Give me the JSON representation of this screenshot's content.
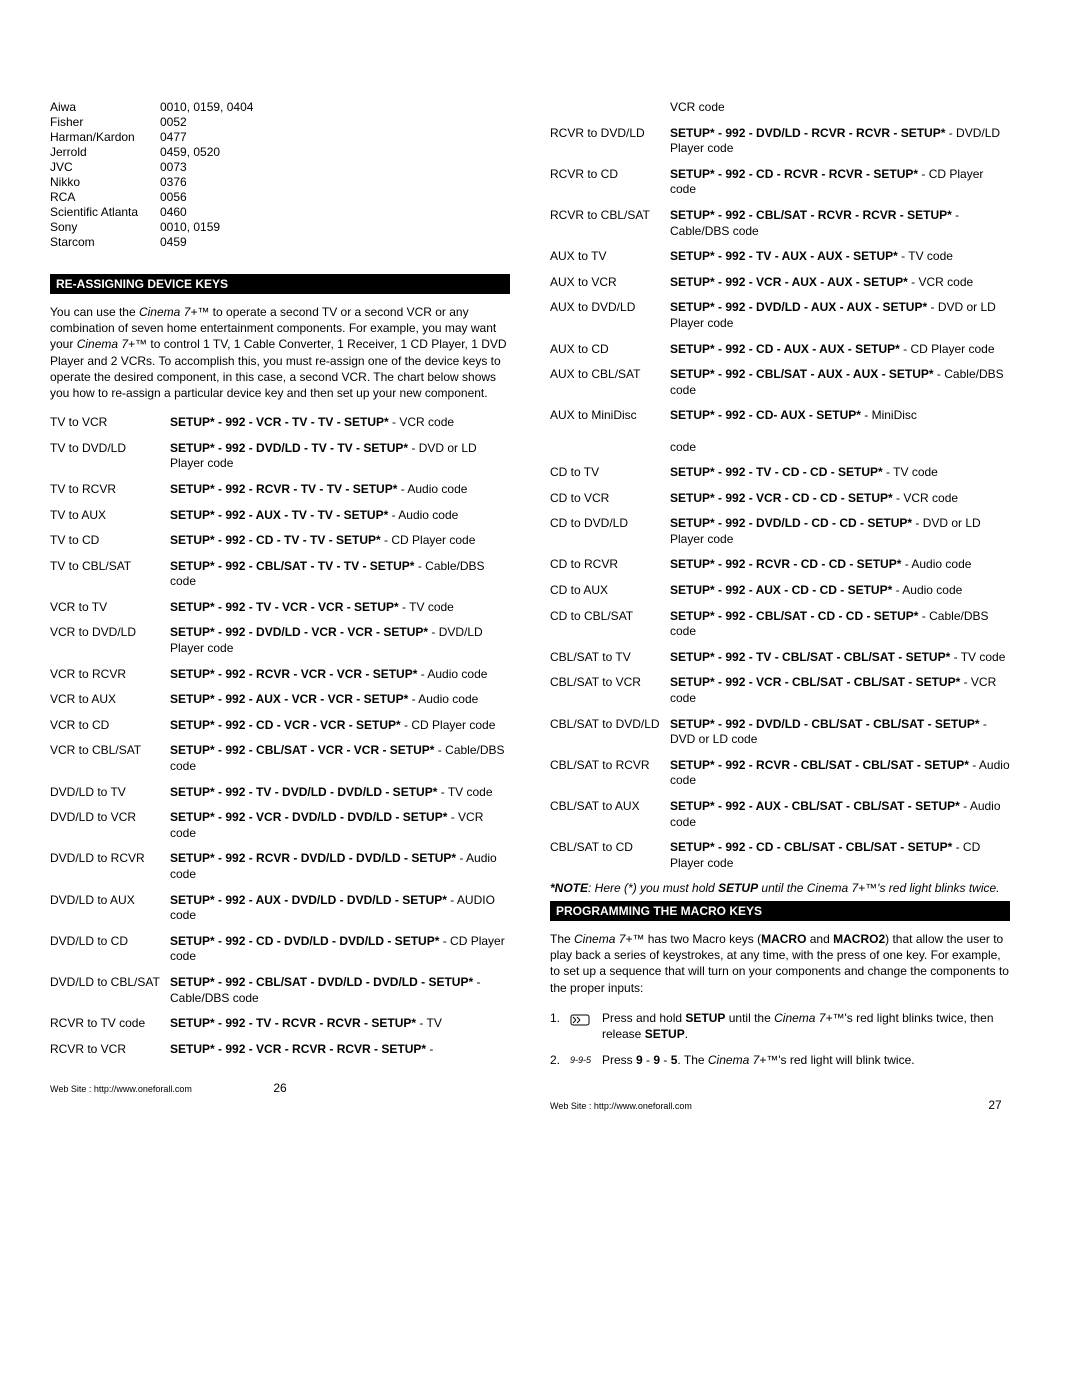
{
  "brands": [
    {
      "name": "Aiwa",
      "codes": "0010, 0159, 0404"
    },
    {
      "name": "Fisher",
      "codes": "0052"
    },
    {
      "name": "Harman/Kardon",
      "codes": "0477"
    },
    {
      "name": "Jerrold",
      "codes": "0459, 0520"
    },
    {
      "name": "JVC",
      "codes": "0073"
    },
    {
      "name": "Nikko",
      "codes": "0376"
    },
    {
      "name": "RCA",
      "codes": "0056"
    },
    {
      "name": "Scientific Atlanta",
      "codes": "0460"
    },
    {
      "name": "Sony",
      "codes": "0010, 0159"
    },
    {
      "name": "Starcom",
      "codes": "0459"
    }
  ],
  "section1_title": "RE-ASSIGNING DEVICE KEYS",
  "intro_html": "You can use the <span class=\"italic\">Cinema 7+™</span> to operate a second TV or a second VCR or any combination of seven home entertainment components. For example, you may want your <span class=\"italic\">Cinema 7+™</span> to control 1 TV, 1 Cable Converter, 1 Receiver, 1 CD Player, 1 DVD Player and 2 VCRs. To accomplish this, you must re-assign one of the device keys to operate the desired component, in this case, a second VCR. The chart below shows you how to re-assign a particular device key and then set up your new component.",
  "left_map": [
    {
      "label": "TV to VCR",
      "html": "<b>SETUP* - 992 - VCR - TV -  TV - SETUP*</b> - VCR code"
    },
    {
      "label": "TV to DVD/LD",
      "html": "<b>SETUP* - 992 - DVD/LD - TV - TV - SETUP*</b> - DVD or LD Player code"
    },
    {
      "label": "TV to RCVR",
      "html": "<b>SETUP* - 992 - RCVR - TV - TV - SETUP*</b> - Audio code"
    },
    {
      "label": "TV to AUX",
      "html": "<b>SETUP* - 992 - AUX - TV - TV - SETUP*</b> - Audio code"
    },
    {
      "label": "TV to CD",
      "html": "<b>SETUP* - 992 - CD - TV - TV - SETUP*</b> - CD Player code"
    },
    {
      "label": "TV to CBL/SAT",
      "html": "<b>SETUP* - 992 - CBL/SAT - TV - TV - SETUP*</b> - Cable/DBS code"
    },
    {
      "label": "VCR to TV",
      "html": "<b>SETUP* - 992 - TV - VCR - VCR - SETUP*</b> - TV code"
    },
    {
      "label": "VCR to DVD/LD",
      "html": "<b>SETUP* - 992 - DVD/LD - VCR - VCR - SETUP*</b> - DVD/LD Player code"
    },
    {
      "label": "VCR to RCVR",
      "html": "<b>SETUP* - 992 - RCVR - VCR - VCR - SETUP*</b> - Audio code"
    },
    {
      "label": "VCR to AUX",
      "html": "<b>SETUP* - 992 - AUX - VCR - VCR - SETUP*</b> - Audio code"
    },
    {
      "label": "VCR to CD",
      "html": "<b>SETUP* - 992 - CD - VCR - VCR - SETUP*</b> - CD Player code"
    },
    {
      "label": "VCR to CBL/SAT",
      "html": "<b>SETUP* - 992 - CBL/SAT - VCR - VCR - SETUP*</b> - Cable/DBS code"
    },
    {
      "label": "DVD/LD to TV",
      "html": "<b>SETUP* - 992 - TV - DVD/LD - DVD/LD - SETUP*</b> - TV code"
    },
    {
      "label": "DVD/LD to VCR",
      "html": "<b>SETUP* - 992 - VCR - DVD/LD - DVD/LD - SETUP*</b> - VCR code"
    },
    {
      "label": "DVD/LD to RCVR",
      "html": "<b>SETUP* - 992 - RCVR - DVD/LD - DVD/LD - SETUP*</b> - Audio code"
    },
    {
      "label": "DVD/LD to AUX",
      "html": "<b>SETUP* - 992 - AUX - DVD/LD - DVD/LD - SETUP*</b> - AUDIO code"
    },
    {
      "label": "DVD/LD to CD",
      "html": "<b>SETUP* - 992 - CD - DVD/LD - DVD/LD - SETUP*</b> - CD Player code"
    },
    {
      "label": "DVD/LD to CBL/SAT",
      "html": "<b>SETUP* - 992 - CBL/SAT - DVD/LD - DVD/LD - SETUP*</b> - Cable/DBS code"
    },
    {
      "label": "RCVR  to TV code",
      "html": "<b>SETUP* - 992 - TV - RCVR - RCVR - SETUP*</b> - TV"
    },
    {
      "label": "RCVR to VCR",
      "html": "<b>SETUP* - 992 - VCR - RCVR - RCVR - SETUP*</b> -"
    }
  ],
  "right_top_extra": "VCR code",
  "right_map": [
    {
      "label": "RCVR to DVD/LD",
      "html": "<b>SETUP* - 992 - DVD/LD - RCVR - RCVR - SETUP*</b> - DVD/LD Player code"
    },
    {
      "label": "RCVR to CD",
      "html": "<b>SETUP* - 992 - CD - RCVR - RCVR - SETUP*</b> - CD Player code"
    },
    {
      "label": "RCVR to CBL/SAT",
      "html": "<b>SETUP* - 992 - CBL/SAT - RCVR - RCVR - SETUP*</b> - Cable/DBS code"
    },
    {
      "label": "AUX to TV",
      "html": "<b>SETUP* - 992 - TV - AUX - AUX - SETUP*</b> - TV code"
    },
    {
      "label": "AUX to VCR",
      "html": "<b>SETUP* - 992 - VCR - AUX - AUX - SETUP*</b> - VCR code"
    },
    {
      "label": "AUX to DVD/LD",
      "html": "<b>SETUP* - 992 - DVD/LD - AUX - AUX - SETUP*</b> - DVD or LD Player code"
    },
    {
      "label": "AUX to CD",
      "html": "<b>SETUP* - 992 - CD - AUX - AUX - SETUP*</b> - CD Player code"
    },
    {
      "label": "AUX to CBL/SAT",
      "html": "<b>SETUP* - 992 - CBL/SAT - AUX - AUX - SETUP*</b> - Cable/DBS code"
    },
    {
      "label": "AUX to MiniDisc",
      "html": "<b>SETUP* - 992 - CD- AUX - SETUP*</b> - MiniDisc<br><br>code"
    },
    {
      "label": "CD to TV",
      "html": "<b>SETUP* - 992 - TV - CD - CD - SETUP*</b> - TV code"
    },
    {
      "label": "CD to VCR",
      "html": "<b>SETUP* - 992 - VCR - CD - CD - SETUP*</b> - VCR code"
    },
    {
      "label": "CD to DVD/LD",
      "html": "<b>SETUP* - 992 - DVD/LD - CD - CD - SETUP*</b> - DVD or LD Player code"
    },
    {
      "label": "CD to RCVR",
      "html": "<b>SETUP* - 992 - RCVR - CD - CD - SETUP*</b> - Audio code"
    },
    {
      "label": "CD to AUX",
      "html": "<b>SETUP* - 992 - AUX - CD - CD - SETUP*</b> - Audio code"
    },
    {
      "label": "CD to CBL/SAT",
      "html": "<b>SETUP* - 992 - CBL/SAT - CD - CD - SETUP*</b> - Cable/DBS code"
    },
    {
      "label": "CBL/SAT to TV",
      "html": "<b>SETUP* - 992 - TV - CBL/SAT - CBL/SAT - SETUP*</b> - TV code"
    },
    {
      "label": "CBL/SAT to VCR",
      "html": "<b>SETUP* - 992 - VCR - CBL/SAT - CBL/SAT - SETUP*</b> - VCR code"
    },
    {
      "label": "CBL/SAT to DVD/LD",
      "html": "<b>SETUP* - 992 - DVD/LD - CBL/SAT - CBL/SAT - SETUP*</b> - DVD or LD code"
    },
    {
      "label": "CBL/SAT to RCVR",
      "html": "<b>SETUP* - 992 - RCVR - CBL/SAT - CBL/SAT - SETUP*</b> - Audio code"
    },
    {
      "label": "CBL/SAT to AUX",
      "html": "<b>SETUP* - 992 - AUX - CBL/SAT - CBL/SAT - SETUP*</b> - Audio code"
    },
    {
      "label": "CBL/SAT to  CD",
      "html": "<b>SETUP* - 992 - CD - CBL/SAT - CBL/SAT - SETUP*</b> - CD Player code"
    }
  ],
  "note_html": "<b>*NOTE</b>: Here (*) you must hold <b>SETUP</b> until the Cinema 7+™'s red light blinks twice.",
  "section2_title": "PROGRAMMING THE MACRO KEYS",
  "macro_intro_html": "The <span class=\"italic\">Cinema 7+™</span> has two Macro keys (<b>MACRO</b> and <b>MACRO2</b>) that allow the user to play back a series of keystrokes, at any time, with the press of one key. For example, to set up a sequence that will turn on your components and change the components to the proper inputs:",
  "steps": [
    {
      "num": "1.",
      "icon": "hold",
      "html": "Press and hold <b>SETUP</b> until the <span class=\"italic\">Cinema 7+™</span>'s red light blinks twice, then release <b>SETUP</b>."
    },
    {
      "num": "2.",
      "icon": "digits",
      "html": "Press <b>9</b> - <b>9</b> - <b>5</b>. The <span class=\"italic\">Cinema 7+™</span>'s red light will blink twice."
    }
  ],
  "footer": {
    "url": "Web Site : http://www.oneforall.com",
    "page_left": "26",
    "page_right": "27"
  }
}
